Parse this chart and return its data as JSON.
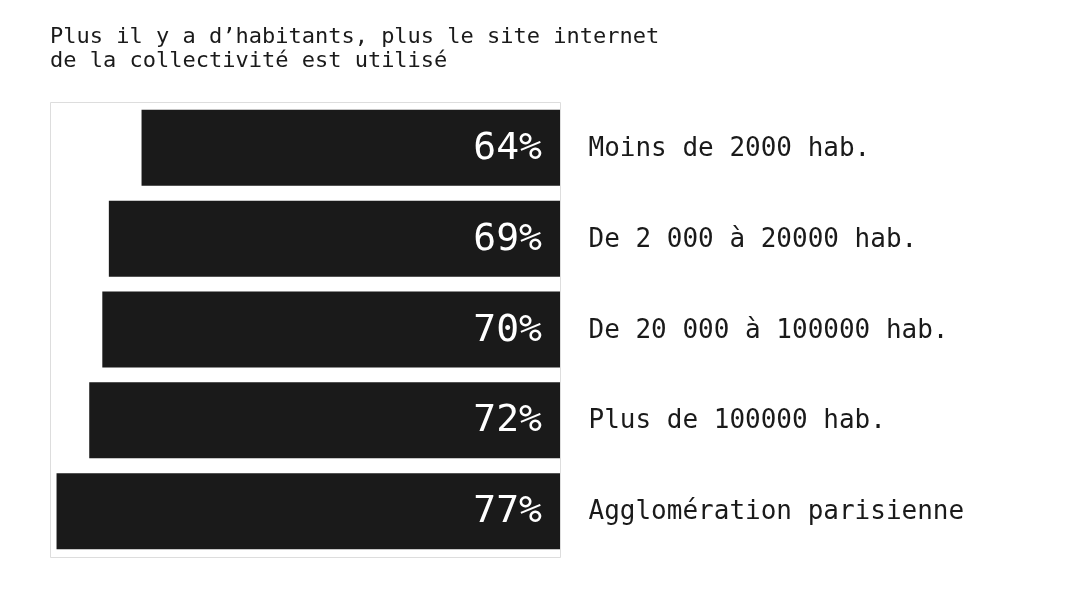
{
  "chart_data": {
    "type": "bar",
    "orientation": "horizontal",
    "title": "Plus il y a d’habitants, plus le site internet\nde la collectivité est utilisé",
    "categories": [
      "Moins de 2000 hab.",
      "De 2 000 à 20000 hab.",
      "De 20 000 à 100000 hab.",
      "Plus de 100000 hab.",
      "Agglomération parisienne"
    ],
    "values": [
      64,
      69,
      70,
      72,
      77
    ],
    "color": "#1a1a1a",
    "xlim": [
      78,
      0
    ],
    "data_labels": true,
    "value_labels": [
      "64%",
      "69%",
      "70%",
      "72%",
      "77%"
    ]
  }
}
